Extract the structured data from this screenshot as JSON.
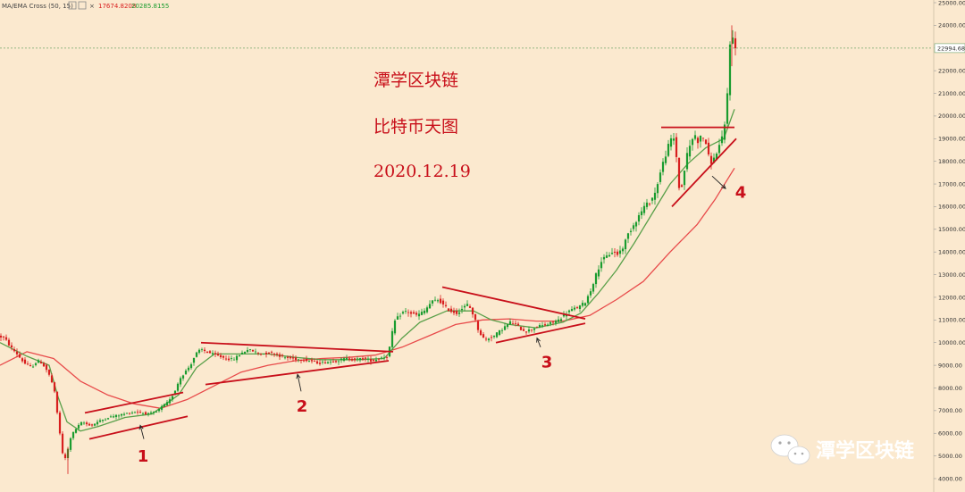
{
  "indicator": {
    "name": "MA/EMA Cross (50, 15)",
    "value_red": "17674.8208",
    "value_green": "20285.8155"
  },
  "overlay": {
    "title": "潭学区块链",
    "subtitle": "比特币天图",
    "date": "2020.12.19"
  },
  "watermark": {
    "text": "潭学区块链"
  },
  "colors": {
    "background": "#fbe9cf",
    "candle_up": "#1a9c2f",
    "candle_down": "#d81e1e",
    "ma_slow": "#e84a4a",
    "ema_fast": "#5aa04a",
    "pattern_lines": "#c80f1a",
    "text_red": "#c80f1a"
  },
  "chart_data": {
    "type": "candlestick",
    "instrument": "BTC",
    "y_axis": {
      "side": "right",
      "min": 4000,
      "max": 25000,
      "ticks": [
        "4000.00",
        "5000.00",
        "6000.00",
        "7000.00",
        "8000.00",
        "9000.00",
        "10000.00",
        "11000.00",
        "12000.00",
        "13000.00",
        "14000.00",
        "15000.00",
        "16000.00",
        "17000.00",
        "18000.00",
        "19000.00",
        "20000.00",
        "21000.00",
        "22000.00",
        "23000.00",
        "24000.00",
        "25000.00"
      ]
    },
    "current_price": "22994.68",
    "price_path": [
      [
        0,
        10300
      ],
      [
        8,
        10200
      ],
      [
        15,
        9800
      ],
      [
        22,
        9500
      ],
      [
        30,
        9100
      ],
      [
        38,
        8900
      ],
      [
        45,
        9200
      ],
      [
        50,
        9100
      ],
      [
        55,
        8800
      ],
      [
        60,
        8400
      ],
      [
        64,
        7800
      ],
      [
        67,
        6900
      ],
      [
        70,
        6000
      ],
      [
        73,
        5100
      ],
      [
        76,
        4900
      ],
      [
        79,
        5300
      ],
      [
        82,
        5800
      ],
      [
        86,
        6100
      ],
      [
        90,
        6300
      ],
      [
        95,
        6500
      ],
      [
        100,
        6400
      ],
      [
        106,
        6350
      ],
      [
        112,
        6500
      ],
      [
        118,
        6600
      ],
      [
        124,
        6700
      ],
      [
        130,
        6750
      ],
      [
        136,
        6800
      ],
      [
        142,
        6850
      ],
      [
        148,
        6900
      ],
      [
        155,
        6950
      ],
      [
        162,
        6900
      ],
      [
        170,
        6850
      ],
      [
        178,
        6950
      ],
      [
        185,
        7200
      ],
      [
        192,
        7400
      ],
      [
        198,
        7800
      ],
      [
        204,
        8400
      ],
      [
        210,
        8700
      ],
      [
        216,
        9000
      ],
      [
        222,
        9500
      ],
      [
        228,
        9700
      ],
      [
        234,
        9600
      ],
      [
        240,
        9500
      ],
      [
        248,
        9400
      ],
      [
        256,
        9300
      ],
      [
        264,
        9250
      ],
      [
        272,
        9500
      ],
      [
        280,
        9700
      ],
      [
        288,
        9600
      ],
      [
        296,
        9500
      ],
      [
        304,
        9550
      ],
      [
        312,
        9500
      ],
      [
        320,
        9350
      ],
      [
        330,
        9300
      ],
      [
        340,
        9250
      ],
      [
        350,
        9200
      ],
      [
        360,
        9100
      ],
      [
        370,
        9150
      ],
      [
        380,
        9200
      ],
      [
        390,
        9300
      ],
      [
        400,
        9250
      ],
      [
        410,
        9300
      ],
      [
        420,
        9200
      ],
      [
        430,
        9350
      ],
      [
        437,
        9400
      ],
      [
        440,
        10000
      ],
      [
        444,
        10900
      ],
      [
        450,
        11200
      ],
      [
        456,
        11400
      ],
      [
        462,
        11300
      ],
      [
        470,
        11200
      ],
      [
        478,
        11400
      ],
      [
        486,
        11800
      ],
      [
        494,
        11900
      ],
      [
        500,
        11600
      ],
      [
        507,
        11400
      ],
      [
        514,
        11300
      ],
      [
        520,
        11500
      ],
      [
        527,
        11700
      ],
      [
        533,
        11200
      ],
      [
        538,
        10600
      ],
      [
        542,
        10300
      ],
      [
        546,
        10100
      ],
      [
        550,
        10200
      ],
      [
        556,
        10300
      ],
      [
        562,
        10500
      ],
      [
        568,
        10700
      ],
      [
        574,
        10900
      ],
      [
        580,
        10800
      ],
      [
        586,
        10600
      ],
      [
        592,
        10500
      ],
      [
        598,
        10600
      ],
      [
        604,
        10700
      ],
      [
        610,
        10750
      ],
      [
        616,
        10800
      ],
      [
        622,
        10900
      ],
      [
        628,
        11000
      ],
      [
        634,
        11200
      ],
      [
        640,
        11400
      ],
      [
        646,
        11500
      ],
      [
        652,
        11600
      ],
      [
        658,
        11800
      ],
      [
        664,
        12300
      ],
      [
        670,
        13000
      ],
      [
        676,
        13600
      ],
      [
        682,
        13800
      ],
      [
        688,
        14000
      ],
      [
        694,
        13900
      ],
      [
        700,
        14200
      ],
      [
        706,
        14800
      ],
      [
        712,
        15200
      ],
      [
        718,
        15600
      ],
      [
        724,
        16000
      ],
      [
        730,
        16200
      ],
      [
        736,
        16600
      ],
      [
        740,
        17200
      ],
      [
        744,
        17800
      ],
      [
        748,
        18300
      ],
      [
        752,
        18800
      ],
      [
        756,
        19100
      ],
      [
        759,
        18800
      ],
      [
        762,
        17000
      ],
      [
        765,
        16600
      ],
      [
        768,
        17400
      ],
      [
        772,
        18300
      ],
      [
        776,
        18800
      ],
      [
        780,
        19200
      ],
      [
        784,
        18900
      ],
      [
        788,
        19100
      ],
      [
        792,
        19000
      ],
      [
        796,
        18200
      ],
      [
        800,
        17900
      ],
      [
        804,
        18300
      ],
      [
        808,
        18700
      ],
      [
        812,
        19100
      ],
      [
        815,
        19800
      ],
      [
        817,
        21000
      ],
      [
        819,
        22700
      ],
      [
        821,
        23800
      ],
      [
        823,
        23400
      ],
      [
        825,
        23000
      ]
    ],
    "ma_slow_path": [
      [
        0,
        9000
      ],
      [
        30,
        9600
      ],
      [
        60,
        9300
      ],
      [
        90,
        8300
      ],
      [
        120,
        7700
      ],
      [
        150,
        7300
      ],
      [
        180,
        7100
      ],
      [
        210,
        7500
      ],
      [
        240,
        8100
      ],
      [
        270,
        8700
      ],
      [
        300,
        9000
      ],
      [
        330,
        9200
      ],
      [
        360,
        9300
      ],
      [
        390,
        9350
      ],
      [
        420,
        9450
      ],
      [
        450,
        9800
      ],
      [
        480,
        10300
      ],
      [
        510,
        10800
      ],
      [
        540,
        11000
      ],
      [
        570,
        11050
      ],
      [
        600,
        10950
      ],
      [
        630,
        10950
      ],
      [
        660,
        11200
      ],
      [
        690,
        11900
      ],
      [
        720,
        12700
      ],
      [
        750,
        14000
      ],
      [
        780,
        15200
      ],
      [
        800,
        16300
      ],
      [
        822,
        17700
      ]
    ],
    "ema_fast_path": [
      [
        0,
        10000
      ],
      [
        30,
        9400
      ],
      [
        55,
        9000
      ],
      [
        65,
        7600
      ],
      [
        75,
        6500
      ],
      [
        90,
        6100
      ],
      [
        110,
        6300
      ],
      [
        140,
        6700
      ],
      [
        170,
        6850
      ],
      [
        200,
        7700
      ],
      [
        220,
        8900
      ],
      [
        240,
        9500
      ],
      [
        270,
        9500
      ],
      [
        300,
        9500
      ],
      [
        330,
        9350
      ],
      [
        360,
        9250
      ],
      [
        400,
        9250
      ],
      [
        430,
        9300
      ],
      [
        450,
        10200
      ],
      [
        470,
        10900
      ],
      [
        500,
        11400
      ],
      [
        530,
        11400
      ],
      [
        550,
        11000
      ],
      [
        570,
        10800
      ],
      [
        600,
        10650
      ],
      [
        630,
        10900
      ],
      [
        650,
        11300
      ],
      [
        670,
        12200
      ],
      [
        690,
        13200
      ],
      [
        710,
        14400
      ],
      [
        730,
        15700
      ],
      [
        750,
        17000
      ],
      [
        770,
        17900
      ],
      [
        790,
        18600
      ],
      [
        810,
        19000
      ],
      [
        822,
        20300
      ]
    ],
    "patterns": [
      {
        "label": "1",
        "lines": [
          [
            [
              95,
              6900
            ],
            [
              205,
              7800
            ]
          ],
          [
            [
              100,
              5750
            ],
            [
              210,
              6750
            ]
          ]
        ],
        "arrow": [
          [
            157,
            6350
          ],
          [
            161,
            5750
          ]
        ],
        "text_pos": [
          160,
          4750
        ]
      },
      {
        "label": "2",
        "lines": [
          [
            [
              225,
              10000
            ],
            [
              440,
              9600
            ]
          ],
          [
            [
              230,
              8150
            ],
            [
              435,
              9200
            ]
          ]
        ],
        "arrow": [
          [
            333,
            8600
          ],
          [
            337,
            7850
          ]
        ],
        "text_pos": [
          338,
          6950
        ]
      },
      {
        "label": "3",
        "lines": [
          [
            [
              495,
              12450
            ],
            [
              655,
              11050
            ]
          ],
          [
            [
              555,
              10000
            ],
            [
              655,
              10850
            ]
          ]
        ],
        "arrow": [
          [
            601,
            10200
          ],
          [
            605,
            9800
          ]
        ],
        "text_pos": [
          612,
          8900
        ]
      },
      {
        "label": "4",
        "lines": [
          [
            [
              740,
              19500
            ],
            [
              822,
              19500
            ]
          ],
          [
            [
              752,
              16000
            ],
            [
              824,
              19000
            ]
          ]
        ],
        "arrow": [
          [
            812,
            16800
          ],
          [
            797,
            17350
          ]
        ],
        "text_pos": [
          829,
          16400
        ]
      }
    ]
  }
}
